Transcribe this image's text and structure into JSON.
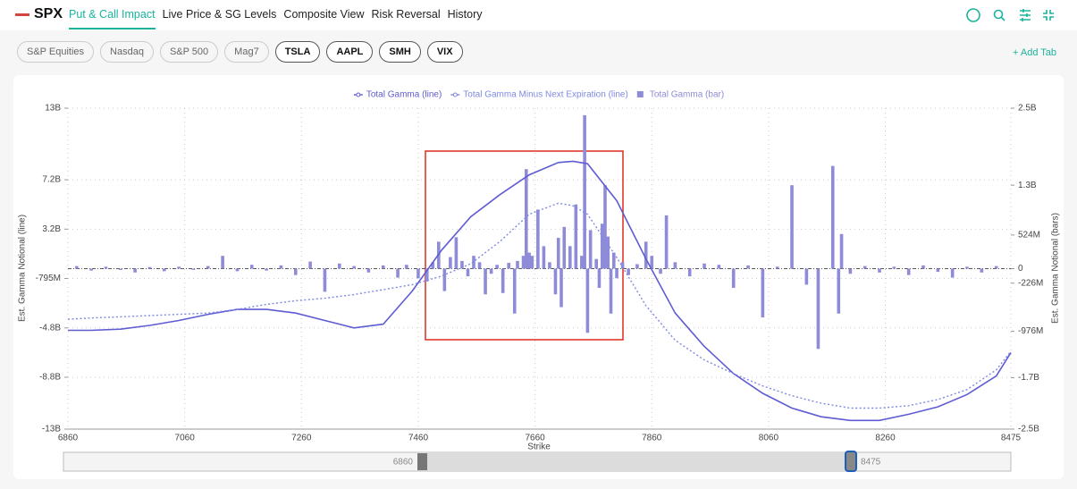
{
  "nav": {
    "brand": "SPX",
    "tabs": [
      "Put & Call Impact",
      "Live Price & SG Levels",
      "Composite View",
      "Risk Reversal",
      "History"
    ],
    "chips": [
      "S&P Equities",
      "Nasdaq",
      "S&P 500",
      "Mag7",
      "TSLA",
      "AAPL",
      "SMH",
      "VIX"
    ],
    "add_tab": "+ Add Tab"
  },
  "chart_data": {
    "type": "combo",
    "xlabel": "Strike",
    "ylabel": "Est. Gamma Notional (line)",
    "y2label": "Est. Gamma Notional (bars)",
    "xlim": [
      6860,
      8475
    ],
    "xticks": [
      6860,
      7060,
      7260,
      7460,
      7660,
      7860,
      8060,
      8260,
      8475
    ],
    "ylim": [
      -13000000000.0,
      13000000000.0
    ],
    "yticks": [
      {
        "value": -13000000000.0,
        "label": "-13B"
      },
      {
        "value": -8800000000.0,
        "label": "-8.8B"
      },
      {
        "value": -4800000000.0,
        "label": "-4.8B"
      },
      {
        "value": -795000000.0,
        "label": "-795M"
      },
      {
        "value": 3200000000.0,
        "label": "3.2B"
      },
      {
        "value": 7200000000.0,
        "label": "7.2B"
      },
      {
        "value": 13000000000.0,
        "label": "13B"
      }
    ],
    "y2lim": [
      -2500000000.0,
      2500000000.0
    ],
    "y2ticks": [
      {
        "value": -2500000000.0,
        "label": "-2.5B"
      },
      {
        "value": -1700000000.0,
        "label": "-1.7B"
      },
      {
        "value": -976000000.0,
        "label": "-976M"
      },
      {
        "value": -226000000.0,
        "label": "-226M"
      },
      0,
      {
        "value": 524000000.0,
        "label": "524M"
      },
      {
        "value": 1300000000.0,
        "label": "1.3B"
      },
      {
        "value": 2500000000.0,
        "label": "2.5B"
      }
    ],
    "grid": true,
    "series": [
      {
        "name": "Total Gamma (line)",
        "type": "line",
        "line_style": "solid",
        "color": "#5f5bd3",
        "x": [
          6860,
          6900,
          6950,
          7000,
          7050,
          7100,
          7150,
          7200,
          7250,
          7300,
          7350,
          7400,
          7450,
          7500,
          7550,
          7600,
          7650,
          7700,
          7725,
          7750,
          7800,
          7850,
          7900,
          7950,
          8000,
          8050,
          8100,
          8150,
          8200,
          8250,
          8300,
          8350,
          8400,
          8450,
          8475
        ],
        "values": [
          -5000000000.0,
          -5000000000.0,
          -4900000000.0,
          -4600000000.0,
          -4200000000.0,
          -3700000000.0,
          -3300000000.0,
          -3300000000.0,
          -3600000000.0,
          -4200000000.0,
          -4800000000.0,
          -4500000000.0,
          -1800000000.0,
          1500000000.0,
          4200000000.0,
          6000000000.0,
          7600000000.0,
          8600000000.0,
          8700000000.0,
          8500000000.0,
          5500000000.0,
          800000000.0,
          -3600000000.0,
          -6300000000.0,
          -8500000000.0,
          -10100000000.0,
          -11300000000.0,
          -12000000000.0,
          -12300000000.0,
          -12300000000.0,
          -11800000000.0,
          -11200000000.0,
          -10200000000.0,
          -8700000000.0,
          -6800000000.0
        ]
      },
      {
        "name": "Total Gamma Minus Next Expiration (line)",
        "type": "line",
        "line_style": "dotted",
        "color": "#7f89e2",
        "x": [
          6860,
          6900,
          6950,
          7000,
          7050,
          7100,
          7150,
          7200,
          7250,
          7300,
          7350,
          7400,
          7450,
          7500,
          7550,
          7600,
          7650,
          7700,
          7725,
          7750,
          7800,
          7850,
          7900,
          7950,
          8000,
          8050,
          8100,
          8150,
          8200,
          8250,
          8300,
          8350,
          8400,
          8450,
          8475
        ],
        "values": [
          -4100000000.0,
          -4000000000.0,
          -3900000000.0,
          -3800000000.0,
          -3700000000.0,
          -3600000000.0,
          -3300000000.0,
          -2900000000.0,
          -2600000000.0,
          -2400000000.0,
          -2100000000.0,
          -1700000000.0,
          -1300000000.0,
          -600000000.0,
          400000000.0,
          2200000000.0,
          4400000000.0,
          5300000000.0,
          5100000000.0,
          4400000000.0,
          900000000.0,
          -3000000000.0,
          -5800000000.0,
          -7400000000.0,
          -8500000000.0,
          -9500000000.0,
          -10300000000.0,
          -10900000000.0,
          -11300000000.0,
          -11300000000.0,
          -11100000000.0,
          -10600000000.0,
          -9800000000.0,
          -8200000000.0,
          -6700000000.0
        ]
      },
      {
        "name": "Total Gamma (bar)",
        "type": "bar",
        "axis": "y2",
        "color": "#8e8bd8",
        "x": [
          6875,
          6900,
          6925,
          6950,
          6975,
          7000,
          7025,
          7050,
          7075,
          7100,
          7125,
          7150,
          7175,
          7200,
          7225,
          7250,
          7275,
          7300,
          7325,
          7350,
          7375,
          7400,
          7425,
          7440,
          7460,
          7475,
          7485,
          7495,
          7505,
          7515,
          7525,
          7535,
          7545,
          7555,
          7565,
          7575,
          7585,
          7595,
          7605,
          7615,
          7625,
          7630,
          7640,
          7645,
          7650,
          7655,
          7665,
          7675,
          7685,
          7695,
          7700,
          7705,
          7710,
          7720,
          7730,
          7740,
          7745,
          7750,
          7755,
          7765,
          7770,
          7775,
          7780,
          7785,
          7790,
          7795,
          7800,
          7810,
          7820,
          7835,
          7850,
          7860,
          7875,
          7885,
          7900,
          7925,
          7950,
          7975,
          8000,
          8025,
          8050,
          8075,
          8100,
          8125,
          8145,
          8170,
          8180,
          8185,
          8200,
          8225,
          8250,
          8275,
          8300,
          8325,
          8350,
          8375,
          8400,
          8425,
          8450
        ],
        "values": [
          40000000.0,
          -30000000.0,
          30000000.0,
          -20000000.0,
          -60000000.0,
          25000000.0,
          -40000000.0,
          30000000.0,
          -20000000.0,
          40000000.0,
          200000000.0,
          -40000000.0,
          60000000.0,
          -30000000.0,
          50000000.0,
          -100000000.0,
          110000000.0,
          -360000000.0,
          80000000.0,
          40000000.0,
          -60000000.0,
          50000000.0,
          -140000000.0,
          60000000.0,
          -150000000.0,
          -200000000.0,
          100000000.0,
          420000000.0,
          -350000000.0,
          180000000.0,
          490000000.0,
          120000000.0,
          -120000000.0,
          200000000.0,
          100000000.0,
          -400000000.0,
          -80000000.0,
          60000000.0,
          -380000000.0,
          90000000.0,
          -700000000.0,
          120000000.0,
          200000000.0,
          1550000000.0,
          250000000.0,
          200000000.0,
          920000000.0,
          350000000.0,
          100000000.0,
          -400000000.0,
          480000000.0,
          -600000000.0,
          650000000.0,
          350000000.0,
          1000000000.0,
          200000000.0,
          2390000000.0,
          -1000000000.0,
          600000000.0,
          150000000.0,
          -300000000.0,
          700000000.0,
          1300000000.0,
          500000000.0,
          -700000000.0,
          250000000.0,
          -150000000.0,
          100000000.0,
          -100000000.0,
          70000000.0,
          420000000.0,
          200000000.0,
          -80000000.0,
          830000000.0,
          100000000.0,
          -120000000.0,
          80000000.0,
          60000000.0,
          -300000000.0,
          50000000.0,
          -760000000.0,
          30000000.0,
          1300000000.0,
          -250000000.0,
          -1250000000.0,
          1600000000.0,
          -700000000.0,
          540000000.0,
          -80000000.0,
          40000000.0,
          -60000000.0,
          30000000.0,
          -100000000.0,
          50000000.0,
          -50000000.0,
          -140000000.0,
          30000000.0,
          -60000000.0,
          40000000.0
        ]
      }
    ]
  }
}
